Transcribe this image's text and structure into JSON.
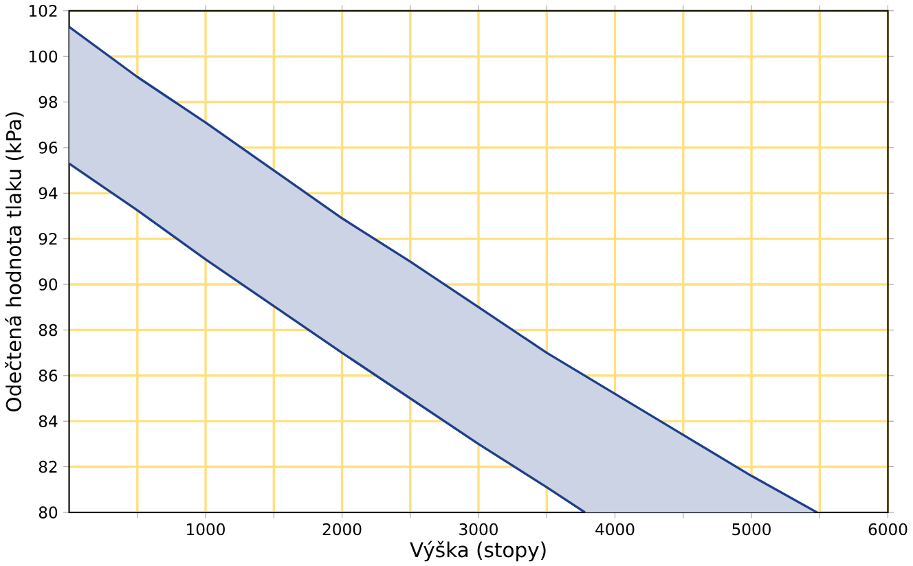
{
  "chart_data": {
    "type": "area",
    "xlabel": "Výška (stopy)",
    "ylabel": "Odečtená hodnota tlaku (kPa)",
    "xlim": [
      0,
      6000
    ],
    "ylim": [
      80,
      102
    ],
    "xticks": [
      {
        "value": 500,
        "label": null
      },
      1000,
      {
        "value": 1500,
        "label": null
      },
      2000,
      {
        "value": 2500,
        "label": null
      },
      3000,
      {
        "value": 3500,
        "label": null
      },
      4000,
      {
        "value": 4500,
        "label": null
      },
      5000,
      {
        "value": 5500,
        "label": null
      },
      6000
    ],
    "yticks": [
      80,
      82,
      84,
      86,
      88,
      90,
      92,
      94,
      96,
      98,
      100,
      102
    ],
    "grid": true,
    "series": [
      {
        "type": "line",
        "color": "#1f3f8a",
        "x": [
          0,
          500,
          1000,
          1500,
          2000,
          2500,
          3000,
          3500,
          4000,
          4500,
          5000,
          5480
        ],
        "values": [
          101.3,
          99.1,
          97.1,
          95.0,
          92.9,
          91.0,
          89.0,
          87.0,
          85.2,
          83.4,
          81.6,
          80
        ]
      },
      {
        "type": "line",
        "color": "#1f3f8a",
        "x": [
          0,
          500,
          1000,
          1500,
          2000,
          2500,
          3000,
          3500,
          3780
        ],
        "values": [
          95.3,
          93.25,
          91.1,
          89.05,
          87.0,
          85.0,
          83.0,
          81.1,
          80
        ]
      }
    ]
  }
}
